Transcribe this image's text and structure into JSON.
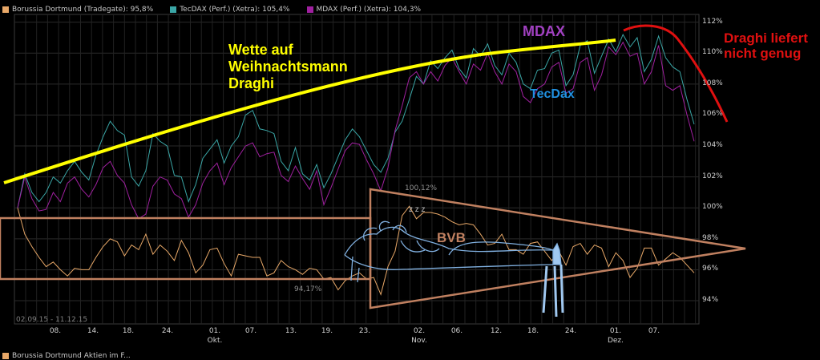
{
  "legend": [
    {
      "label": "Borussia Dortmund (Tradegate): 95,8%",
      "color": "#e8a868"
    },
    {
      "label": "TecDAX (Perf.) (Xetra): 105,4%",
      "color": "#3aa6a6"
    },
    {
      "label": "MDAX (Perf.) (Xetra): 104,3%",
      "color": "#a020a0"
    }
  ],
  "date_range": "02.09.15 - 11.12.15",
  "bottom_legend_label": "Borussia Dortmund Aktien im F...",
  "annotations": {
    "wette": [
      "Wette auf",
      "Weihnachtsmann",
      "Draghi"
    ],
    "mdax": "MDAX",
    "tecdax": "TecDax",
    "draghi": [
      "Draghi liefert",
      "nicht genug"
    ],
    "bvb": "BVB",
    "zzz": "z z z"
  },
  "colors": {
    "wette": "#ffff00",
    "mdax": "#a040c0",
    "tecdax": "#2090e0",
    "draghi": "#e01010",
    "bvb": "#c08060",
    "frame": "#c08060",
    "grid": "#2a2a2a"
  },
  "chart_data": {
    "type": "line",
    "ylim": [
      92.5,
      112.5
    ],
    "yticks": [
      "94%",
      "96%",
      "98%",
      "100%",
      "102%",
      "104%",
      "106%",
      "108%",
      "110%",
      "112%"
    ],
    "xticks": [
      "08.",
      "14.",
      "18.",
      "24.",
      "01.",
      "07.",
      "13.",
      "19.",
      "23.",
      "02.",
      "06.",
      "12.",
      "18.",
      "24.",
      "01.",
      "07."
    ],
    "months": [
      "Okt.",
      "Nov.",
      "Dez."
    ],
    "data_labels": {
      "high": "100,12%",
      "low": "94,17%"
    },
    "series": [
      {
        "name": "Borussia Dortmund (Tradegate)",
        "color": "#e8a868",
        "values": [
          100.0,
          98.3,
          97.5,
          96.8,
          96.2,
          96.5,
          96.0,
          95.6,
          96.1,
          96.0,
          96.0,
          96.8,
          97.5,
          98.0,
          97.8,
          96.9,
          97.6,
          97.3,
          98.3,
          97.0,
          97.6,
          97.2,
          96.6,
          97.9,
          97.1,
          95.8,
          96.3,
          97.3,
          97.4,
          96.4,
          95.6,
          97.0,
          96.9,
          96.8,
          96.8,
          95.6,
          95.8,
          96.6,
          96.2,
          96.0,
          95.7,
          96.1,
          96.0,
          95.4,
          95.5,
          94.7,
          95.3,
          95.6,
          95.8,
          95.4,
          95.5,
          94.4,
          96.2,
          97.2,
          99.5,
          100.1,
          99.3,
          99.7,
          99.7,
          99.6,
          99.4,
          99.1,
          98.9,
          99.0,
          98.9,
          98.3,
          97.6,
          97.7,
          98.3,
          97.3,
          97.3,
          97.0,
          97.7,
          97.8,
          97.2,
          96.6,
          97.2,
          96.3,
          97.5,
          97.7,
          97.0,
          97.6,
          97.4,
          96.2,
          97.1,
          96.6,
          95.5,
          96.1,
          97.4,
          97.4,
          96.3,
          96.7,
          97.1,
          96.8,
          96.3,
          95.8
        ]
      },
      {
        "name": "TecDAX (Perf.) (Xetra)",
        "color": "#3aa6a6",
        "values": [
          100.0,
          102.2,
          101.0,
          100.4,
          101.0,
          102.0,
          101.6,
          102.4,
          103.0,
          102.3,
          101.8,
          103.4,
          104.6,
          105.6,
          105.0,
          104.7,
          102.0,
          101.4,
          102.4,
          104.8,
          104.3,
          104.0,
          102.1,
          102.0,
          100.4,
          101.5,
          103.2,
          103.8,
          104.4,
          102.9,
          104.0,
          104.6,
          106.0,
          106.3,
          105.1,
          105.0,
          104.8,
          103.0,
          102.4,
          103.9,
          102.2,
          101.8,
          102.8,
          101.3,
          102.2,
          103.3,
          104.4,
          105.1,
          104.6,
          103.7,
          102.8,
          102.3,
          103.2,
          104.9,
          105.6,
          107.0,
          108.5,
          108.0,
          109.5,
          109.0,
          109.7,
          110.2,
          109.0,
          108.4,
          110.3,
          109.8,
          110.6,
          109.2,
          108.6,
          110.0,
          109.4,
          108.0,
          107.7,
          108.9,
          109.0,
          110.0,
          110.2,
          107.9,
          108.6,
          110.5,
          110.8,
          108.7,
          109.8,
          110.9,
          110.1,
          111.2,
          110.4,
          111.0,
          108.8,
          109.6,
          111.1,
          109.7,
          109.1,
          108.8,
          107.0,
          105.4
        ]
      },
      {
        "name": "MDAX (Perf.) (Xetra)",
        "color": "#a020a0",
        "values": [
          100.0,
          102.0,
          100.6,
          99.8,
          99.9,
          101.0,
          100.4,
          101.6,
          102.0,
          101.2,
          100.7,
          101.5,
          102.6,
          103.0,
          102.1,
          101.6,
          100.2,
          99.3,
          99.6,
          101.4,
          102.0,
          101.8,
          100.9,
          100.6,
          99.4,
          100.2,
          101.6,
          102.4,
          102.9,
          101.5,
          102.6,
          103.3,
          104.0,
          104.2,
          103.3,
          103.5,
          103.6,
          102.1,
          101.7,
          102.7,
          101.9,
          101.2,
          102.4,
          100.2,
          101.3,
          102.5,
          103.7,
          104.2,
          104.1,
          103.1,
          102.2,
          101.1,
          102.6,
          105.0,
          106.6,
          108.4,
          108.8,
          108.0,
          108.8,
          108.2,
          109.2,
          109.7,
          108.8,
          108.0,
          109.3,
          108.9,
          110.0,
          108.8,
          108.0,
          109.3,
          108.8,
          107.2,
          106.8,
          107.7,
          108.0,
          109.1,
          109.4,
          107.4,
          107.7,
          109.4,
          109.7,
          107.6,
          108.6,
          110.4,
          109.9,
          110.7,
          109.8,
          110.0,
          108.0,
          108.8,
          110.5,
          107.9,
          107.6,
          107.9,
          106.0,
          104.3
        ]
      }
    ]
  }
}
